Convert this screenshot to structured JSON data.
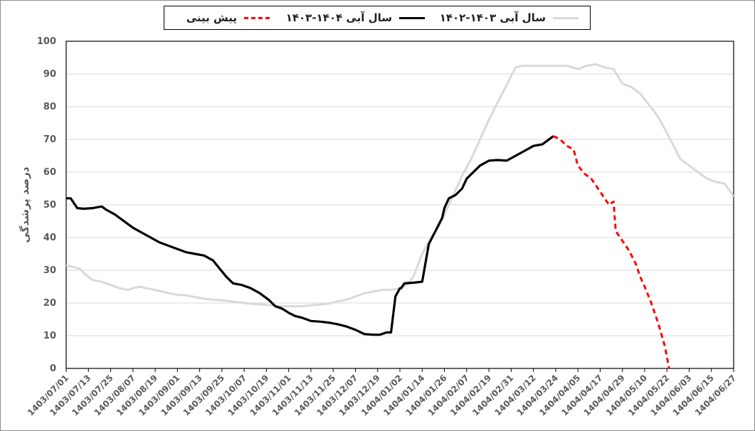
{
  "chart_data": {
    "type": "line",
    "title": "",
    "xlabel": "",
    "ylabel": "درصد پرشدگی",
    "ylim": [
      0,
      100
    ],
    "yticks": [
      0,
      10,
      20,
      30,
      40,
      50,
      60,
      70,
      80,
      90,
      100
    ],
    "grid": true,
    "legend_position": "top-center",
    "x_tick_labels": [
      "1403/07/01",
      "1403/07/13",
      "1403/07/25",
      "1403/08/07",
      "1403/08/19",
      "1403/09/01",
      "1403/09/13",
      "1403/09/25",
      "1403/10/07",
      "1403/10/19",
      "1403/11/01",
      "1403/11/13",
      "1403/11/25",
      "1403/12/07",
      "1403/12/19",
      "1404/01/02",
      "1404/01/14",
      "1404/01/26",
      "1404/02/07",
      "1404/02/19",
      "1404/02/31",
      "1404/03/12",
      "1404/03/24",
      "1404/04/05",
      "1404/04/17",
      "1404/04/29",
      "1404/05/10",
      "1404/05/22",
      "1404/06/03",
      "1404/06/15",
      "1404/06/27"
    ],
    "x_range_ticks": [
      0,
      30
    ],
    "series": [
      {
        "name": "سال آبی ۱۴۰۳-۱۴۰۲",
        "color": "#d9d9d9",
        "style": "solid",
        "x": [
          0,
          0.3,
          0.6,
          0.9,
          1.2,
          1.6,
          2,
          2.4,
          2.8,
          3,
          3.3,
          3.6,
          4,
          4.3,
          4.6,
          5,
          5.4,
          5.8,
          6.2,
          6.6,
          7,
          7.4,
          7.8,
          8.2,
          8.6,
          9,
          9.4,
          9.8,
          10.2,
          10.6,
          11,
          11.4,
          11.8,
          12.2,
          12.6,
          13,
          13.4,
          13.8,
          14.2,
          14.6,
          15,
          15.3,
          15.6,
          16,
          16.4,
          16.7,
          17,
          17.4,
          17.8,
          18.2,
          18.6,
          19,
          19.3,
          19.6,
          19.9,
          20.2,
          20.5,
          21,
          21.5,
          22,
          22.5,
          23,
          23.4,
          23.8,
          24.2,
          24.6,
          25,
          25.4,
          25.8,
          26.2,
          26.6,
          27,
          27.3,
          27.6,
          28,
          28.4,
          28.8,
          29.2,
          29.6,
          30
        ],
        "values": [
          31.5,
          31,
          30.5,
          28.5,
          27,
          26.5,
          25.5,
          24.5,
          24,
          24.5,
          25,
          24.5,
          24,
          23.5,
          23,
          22.5,
          22.3,
          21.8,
          21.3,
          21,
          20.8,
          20.5,
          20.2,
          19.8,
          19.6,
          19.4,
          19.2,
          19,
          19,
          19,
          19.3,
          19.5,
          19.8,
          20.5,
          21,
          22,
          23,
          23.5,
          24,
          24,
          24.5,
          25.5,
          28,
          35,
          40,
          43,
          47,
          53,
          59,
          64,
          70,
          76,
          80,
          84,
          88,
          92,
          92.5,
          92.5,
          92.5,
          92.5,
          92.5,
          91.5,
          92.5,
          93,
          92,
          91.5,
          87,
          86,
          84,
          80.5,
          77,
          72,
          68,
          64,
          62,
          60,
          58,
          57,
          56.5,
          52.5
        ]
      },
      {
        "name": "سال آبی ۱۴۰۴-۱۴۰۳",
        "color": "#000000",
        "style": "solid",
        "x": [
          0,
          0.2,
          0.4,
          0.5,
          0.8,
          1.2,
          1.6,
          1.8,
          2.2,
          2.6,
          3,
          3.4,
          3.8,
          4.2,
          4.6,
          5,
          5.4,
          5.8,
          6.2,
          6.6,
          6.9,
          7.2,
          7.5,
          7.9,
          8.3,
          8.7,
          9.1,
          9.4,
          9.7,
          10,
          10.3,
          10.6,
          11,
          11.4,
          11.8,
          12.2,
          12.6,
          13,
          13.4,
          13.8,
          14.1,
          14.4,
          14.6,
          14.8,
          15,
          15.05,
          15.2,
          15.6,
          16,
          16.3,
          16.6,
          16.9,
          17,
          17.2,
          17.5,
          17.8,
          18,
          18.3,
          18.6,
          19,
          19.4,
          19.8,
          20.2,
          20.6,
          21,
          21.4,
          21.6,
          21.8,
          21.9
        ],
        "values": [
          52,
          52,
          50,
          49,
          48.8,
          49,
          49.5,
          48.5,
          47,
          45,
          43,
          41.5,
          40,
          38.5,
          37.5,
          36.5,
          35.5,
          35,
          34.5,
          33,
          30.5,
          28,
          26,
          25.5,
          24.5,
          23,
          21,
          19,
          18.3,
          17,
          16,
          15.5,
          14.5,
          14.3,
          14,
          13.5,
          12.8,
          11.8,
          10.5,
          10.3,
          10.3,
          11,
          11,
          22,
          24.5,
          24.5,
          26,
          26.2,
          26.5,
          38,
          42,
          46,
          49,
          52,
          53,
          55,
          58,
          60,
          62,
          63.5,
          63.7,
          63.5,
          65,
          66.5,
          68,
          68.5,
          69.5,
          70.5,
          71
        ]
      },
      {
        "name": "پیش بینی",
        "color": "#ff0000",
        "style": "dashed",
        "x": [
          21.9,
          22.2,
          22.5,
          22.8,
          23,
          23.3,
          23.6,
          23.9,
          24.2,
          24.4,
          24.6,
          24.7,
          24.8,
          25,
          25.3,
          25.6,
          25.8,
          26,
          26.3,
          26.6,
          26.9,
          27.1
        ],
        "values": [
          71,
          70,
          68,
          67,
          62,
          59.5,
          58,
          55,
          52,
          50,
          51,
          42,
          41,
          39,
          36,
          32,
          28,
          25,
          20,
          14,
          7,
          0
        ]
      }
    ]
  },
  "legend": {
    "items": [
      {
        "label": "سال آبی ۱۴۰۳-۱۴۰۲",
        "color": "#d9d9d9",
        "style": "solid"
      },
      {
        "label": "سال آبی ۱۴۰۴-۱۴۰۳",
        "color": "#000000",
        "style": "solid"
      },
      {
        "label": "پیش بینی",
        "color": "#ff0000",
        "style": "dashed"
      }
    ]
  }
}
